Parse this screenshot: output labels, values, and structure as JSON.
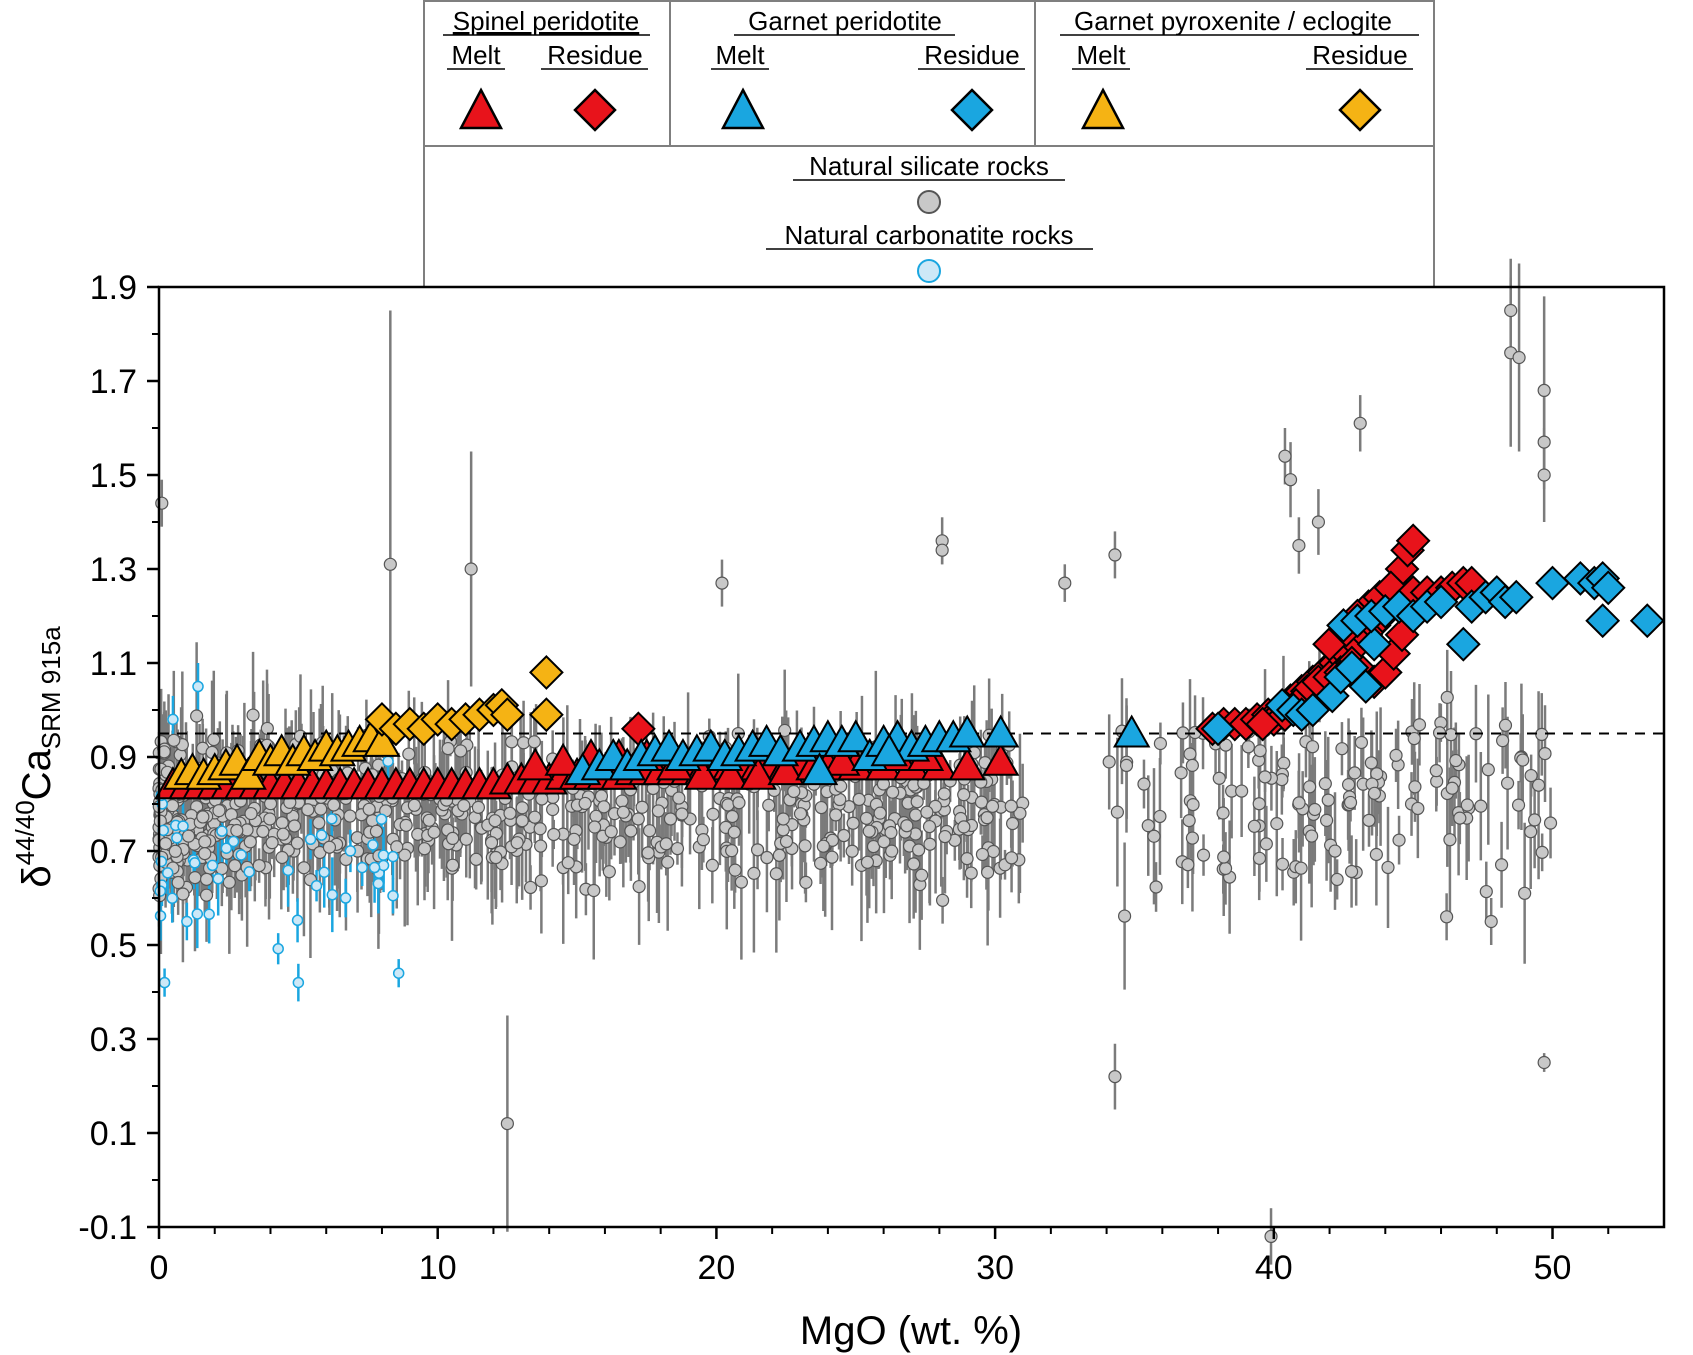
{
  "colors": {
    "spinel": "#e8131b",
    "garnet": "#1aa6e0",
    "pyroxenite": "#f5b314",
    "silicate": "#c8c8c8",
    "silicate_err": "#7b7b7b",
    "carbonatite": "#cde8f7",
    "carbonatite_err": "#1aa6e0",
    "frame": "#000000",
    "legend_border": "#7f7f7f"
  },
  "legend": {
    "groups": [
      {
        "title": "Spinel peridotite",
        "melt_label": "Melt",
        "residue_label": "Residue",
        "color_key": "spinel"
      },
      {
        "title": "Garnet peridotite",
        "melt_label": "Melt",
        "residue_label": "Residue",
        "color_key": "garnet"
      },
      {
        "title": "Garnet pyroxenite / eclogite",
        "melt_label": "Melt",
        "residue_label": "Residue",
        "color_key": "pyroxenite"
      }
    ],
    "natural_silicate": "Natural silicate rocks",
    "natural_carbonatite": "Natural carbonatite rocks"
  },
  "chart_data": {
    "type": "scatter",
    "xlabel": "MgO (wt. %)",
    "ylabel_main": "δ",
    "ylabel_sup": "44/40",
    "ylabel_ca": "Ca",
    "ylabel_sub": "SRM 915a",
    "xlim": [
      0,
      54
    ],
    "ylim": [
      -0.1,
      1.9
    ],
    "xticks": [
      0,
      10,
      20,
      30,
      40,
      50
    ],
    "yticks": [
      -0.1,
      0.1,
      0.3,
      0.5,
      0.7,
      0.9,
      1.1,
      1.3,
      1.5,
      1.7,
      1.9
    ],
    "xtick_labels": [
      "0",
      "10",
      "20",
      "30",
      "40",
      "50"
    ],
    "ytick_labels": [
      "-0.1",
      "0.1",
      "0.3",
      "0.5",
      "0.7",
      "0.9",
      "1.1",
      "1.3",
      "1.5",
      "1.7",
      "1.9"
    ],
    "reference_line_y": 0.95,
    "series": [
      {
        "name": "Spinel peridotite Melt",
        "marker": "triangle",
        "color_key": "spinel",
        "points": [
          [
            0.5,
            0.84
          ],
          [
            1,
            0.84
          ],
          [
            1.5,
            0.84
          ],
          [
            2,
            0.84
          ],
          [
            2.5,
            0.84
          ],
          [
            3,
            0.84
          ],
          [
            3.5,
            0.84
          ],
          [
            4,
            0.84
          ],
          [
            4.5,
            0.84
          ],
          [
            5,
            0.84
          ],
          [
            5.5,
            0.84
          ],
          [
            6,
            0.84
          ],
          [
            6.5,
            0.84
          ],
          [
            7,
            0.84
          ],
          [
            7.5,
            0.84
          ],
          [
            8,
            0.84
          ],
          [
            8.5,
            0.84
          ],
          [
            9,
            0.84
          ],
          [
            9.5,
            0.84
          ],
          [
            10,
            0.84
          ],
          [
            10.5,
            0.84
          ],
          [
            11,
            0.84
          ],
          [
            11.5,
            0.84
          ],
          [
            12,
            0.84
          ],
          [
            12.5,
            0.85
          ],
          [
            13,
            0.85
          ],
          [
            13.5,
            0.85
          ],
          [
            14,
            0.85
          ],
          [
            14.5,
            0.86
          ],
          [
            15,
            0.86
          ],
          [
            15.5,
            0.86
          ],
          [
            16,
            0.86
          ],
          [
            16.5,
            0.86
          ],
          [
            17,
            0.87
          ],
          [
            17.5,
            0.87
          ],
          [
            18,
            0.87
          ],
          [
            18.5,
            0.87
          ],
          [
            19,
            0.87
          ],
          [
            19.5,
            0.87
          ],
          [
            20,
            0.87
          ],
          [
            20.5,
            0.88
          ],
          [
            21,
            0.88
          ],
          [
            21.5,
            0.88
          ],
          [
            22,
            0.88
          ],
          [
            22.5,
            0.88
          ],
          [
            23,
            0.88
          ],
          [
            23.5,
            0.88
          ],
          [
            24,
            0.88
          ],
          [
            24.5,
            0.88
          ],
          [
            25,
            0.88
          ],
          [
            26,
            0.88
          ],
          [
            27,
            0.88
          ],
          [
            28,
            0.88
          ],
          [
            29,
            0.88
          ],
          [
            30.2,
            0.89
          ],
          [
            13.5,
            0.88
          ],
          [
            14.5,
            0.89
          ],
          [
            15.5,
            0.9
          ],
          [
            16.5,
            0.9
          ],
          [
            17.5,
            0.9
          ],
          [
            18.5,
            0.88
          ],
          [
            19.5,
            0.86
          ],
          [
            20.5,
            0.86
          ],
          [
            21.5,
            0.86
          ],
          [
            22.5,
            0.87
          ],
          [
            23.5,
            0.88
          ],
          [
            24.5,
            0.89
          ],
          [
            25.5,
            0.9
          ],
          [
            26.5,
            0.9
          ],
          [
            27.5,
            0.9
          ]
        ]
      },
      {
        "name": "Spinel peridotite Residue",
        "marker": "diamond",
        "color_key": "spinel",
        "points": [
          [
            17.2,
            0.96
          ],
          [
            37.8,
            0.96
          ],
          [
            38.2,
            0.97
          ],
          [
            38.6,
            0.97
          ],
          [
            39,
            0.97
          ],
          [
            39.4,
            0.98
          ],
          [
            39.8,
            0.99
          ],
          [
            40.2,
            1.0
          ],
          [
            40.6,
            1.02
          ],
          [
            41,
            1.04
          ],
          [
            41.4,
            1.06
          ],
          [
            41.8,
            1.08
          ],
          [
            42.2,
            1.1
          ],
          [
            42.6,
            1.12
          ],
          [
            43,
            1.14
          ],
          [
            43.3,
            1.16
          ],
          [
            43.6,
            1.18
          ],
          [
            43.9,
            1.2
          ],
          [
            44.2,
            1.23
          ],
          [
            44.4,
            1.26
          ],
          [
            44.6,
            1.3
          ],
          [
            44.8,
            1.34
          ],
          [
            45,
            1.36
          ],
          [
            43.4,
            1.22
          ],
          [
            43.8,
            1.24
          ],
          [
            44.2,
            1.26
          ],
          [
            45,
            1.25
          ],
          [
            45.5,
            1.25
          ],
          [
            46,
            1.25
          ],
          [
            46.4,
            1.26
          ],
          [
            46.8,
            1.27
          ],
          [
            47.1,
            1.27
          ],
          [
            41.2,
            1.04
          ],
          [
            41.6,
            1.06
          ],
          [
            42,
            1.07
          ],
          [
            42.4,
            1.08
          ],
          [
            42.8,
            1.1
          ],
          [
            43.2,
            1.08
          ],
          [
            43.6,
            1.06
          ],
          [
            44,
            1.08
          ],
          [
            44.3,
            1.12
          ],
          [
            44.6,
            1.16
          ],
          [
            40,
            0.98
          ],
          [
            40.4,
            0.99
          ],
          [
            40.8,
            1.01
          ],
          [
            39.6,
            0.97
          ],
          [
            42,
            1.14
          ],
          [
            42.6,
            1.17
          ],
          [
            43,
            1.2
          ]
        ]
      },
      {
        "name": "Garnet peridotite Melt",
        "marker": "triangle",
        "color_key": "garnet",
        "points": [
          [
            15.2,
            0.87
          ],
          [
            15.8,
            0.88
          ],
          [
            16.3,
            0.9
          ],
          [
            16.8,
            0.88
          ],
          [
            17.3,
            0.9
          ],
          [
            17.8,
            0.91
          ],
          [
            18.3,
            0.92
          ],
          [
            18.8,
            0.9
          ],
          [
            19.3,
            0.91
          ],
          [
            19.8,
            0.92
          ],
          [
            20.3,
            0.9
          ],
          [
            20.8,
            0.91
          ],
          [
            21.3,
            0.92
          ],
          [
            21.8,
            0.93
          ],
          [
            22.3,
            0.91
          ],
          [
            23,
            0.92
          ],
          [
            23.5,
            0.93
          ],
          [
            24,
            0.94
          ],
          [
            24.5,
            0.93
          ],
          [
            25,
            0.94
          ],
          [
            25.5,
            0.9
          ],
          [
            26,
            0.93
          ],
          [
            26.5,
            0.94
          ],
          [
            27,
            0.92
          ],
          [
            27.5,
            0.93
          ],
          [
            28,
            0.94
          ],
          [
            28.5,
            0.94
          ],
          [
            29,
            0.95
          ],
          [
            30.2,
            0.95
          ],
          [
            34.9,
            0.95
          ],
          [
            23.7,
            0.87
          ],
          [
            26.2,
            0.91
          ]
        ]
      },
      {
        "name": "Garnet peridotite Residue",
        "marker": "diamond",
        "color_key": "garnet",
        "points": [
          [
            38,
            0.96
          ],
          [
            40.3,
            1.01
          ],
          [
            40.7,
            1.0
          ],
          [
            41,
            0.99
          ],
          [
            41.4,
            1.0
          ],
          [
            42.1,
            1.03
          ],
          [
            42.4,
            1.07
          ],
          [
            42.8,
            1.09
          ],
          [
            43.3,
            1.05
          ],
          [
            43.6,
            1.14
          ],
          [
            42.5,
            1.18
          ],
          [
            43,
            1.19
          ],
          [
            43.5,
            1.2
          ],
          [
            44,
            1.21
          ],
          [
            44.5,
            1.22
          ],
          [
            45,
            1.2
          ],
          [
            45.5,
            1.22
          ],
          [
            46,
            1.23
          ],
          [
            46.8,
            1.14
          ],
          [
            47.1,
            1.22
          ],
          [
            47.6,
            1.24
          ],
          [
            48,
            1.25
          ],
          [
            48.3,
            1.23
          ],
          [
            48.7,
            1.24
          ],
          [
            50,
            1.27
          ],
          [
            51,
            1.28
          ],
          [
            51.5,
            1.27
          ],
          [
            51.8,
            1.28
          ],
          [
            52,
            1.26
          ],
          [
            51.8,
            1.19
          ],
          [
            53.4,
            1.19
          ]
        ]
      },
      {
        "name": "Garnet pyroxenite / eclogite Melt",
        "marker": "triangle",
        "color_key": "pyroxenite",
        "points": [
          [
            0.8,
            0.86
          ],
          [
            1.2,
            0.87
          ],
          [
            1.6,
            0.86
          ],
          [
            2,
            0.87
          ],
          [
            2.4,
            0.88
          ],
          [
            2.8,
            0.89
          ],
          [
            3.2,
            0.86
          ],
          [
            3.6,
            0.9
          ],
          [
            4,
            0.89
          ],
          [
            4.4,
            0.91
          ],
          [
            4.8,
            0.89
          ],
          [
            5.2,
            0.91
          ],
          [
            5.6,
            0.9
          ],
          [
            6,
            0.92
          ],
          [
            6.4,
            0.91
          ],
          [
            6.8,
            0.92
          ],
          [
            7.2,
            0.93
          ],
          [
            7.6,
            0.94
          ],
          [
            8,
            0.93
          ]
        ]
      },
      {
        "name": "Garnet pyroxenite / eclogite Residue",
        "marker": "diamond",
        "color_key": "pyroxenite",
        "points": [
          [
            8,
            0.98
          ],
          [
            8.5,
            0.96
          ],
          [
            9,
            0.97
          ],
          [
            9.5,
            0.96
          ],
          [
            10,
            0.98
          ],
          [
            10.5,
            0.97
          ],
          [
            11,
            0.98
          ],
          [
            11.5,
            0.99
          ],
          [
            12,
            1.0
          ],
          [
            12.3,
            1.01
          ],
          [
            12.5,
            0.99
          ],
          [
            13.9,
            1.08
          ],
          [
            13.9,
            0.99
          ]
        ]
      }
    ]
  }
}
